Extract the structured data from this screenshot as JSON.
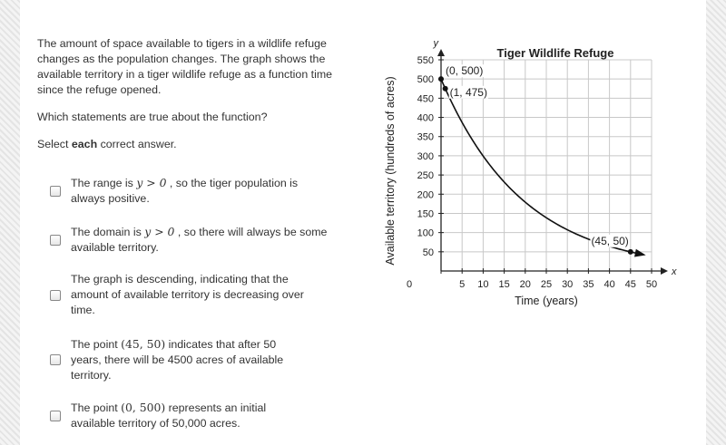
{
  "question": {
    "intro": "The amount of space available to tigers in a wildlife refuge changes as the population changes. The graph shows the available territory in a tiger wildlife refuge as a function time since the refuge opened.",
    "ask": "Which statements are true about the function?",
    "instruction_prefix": "Select ",
    "instruction_bold": "each",
    "instruction_suffix": " correct answer."
  },
  "options": [
    {
      "pre": "The range is ",
      "math": "y > 0",
      "post": " , so the tiger population is always positive."
    },
    {
      "pre": "The domain is ",
      "math": "y > 0",
      "post": " , so there will always be some available territory."
    },
    {
      "pre": "The graph is descending, indicating that the amount of available territory is decreasing over time.",
      "math": "",
      "post": ""
    },
    {
      "pre": "The point ",
      "math": "(45, 50)",
      "post": " indicates that after 50 years, there will be 4500 acres of available territory."
    },
    {
      "pre": "The point ",
      "math": "(0, 500)",
      "post": " represents an initial available territory of 50,000 acres."
    }
  ],
  "chart_data": {
    "type": "line",
    "title": "Tiger Wildlife Refuge",
    "xlabel": "Time (years)",
    "ylabel": "Available territory (hundreds of acres)",
    "x_axis_letter": "x",
    "y_axis_letter": "y",
    "xlim": [
      0,
      50
    ],
    "ylim": [
      0,
      550
    ],
    "x_ticks": [
      0,
      5,
      10,
      15,
      20,
      25,
      30,
      35,
      40,
      45,
      50
    ],
    "y_ticks": [
      50,
      100,
      150,
      200,
      250,
      300,
      350,
      400,
      450,
      500,
      550
    ],
    "grid": true,
    "curve": {
      "a": 500,
      "b": 0.95,
      "x_end": 48
    },
    "points": [
      {
        "x": 0,
        "y": 500,
        "label": "(0, 500)"
      },
      {
        "x": 1,
        "y": 475,
        "label": "(1, 475)"
      },
      {
        "x": 45,
        "y": 50,
        "label": "(45, 50)"
      }
    ]
  }
}
